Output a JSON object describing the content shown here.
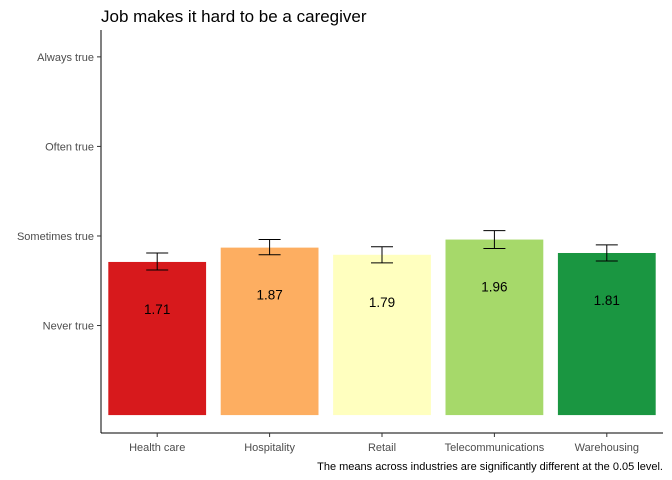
{
  "chart_data": {
    "type": "bar",
    "title": "Job makes it hard to be a caregiver",
    "caption": "The means across industries are significantly different at the 0.05 level.",
    "xlabel": "",
    "ylabel": "",
    "categories": [
      "Health care",
      "Hospitality",
      "Retail",
      "Telecommunications",
      "Warehousing"
    ],
    "values": [
      1.71,
      1.87,
      1.79,
      1.96,
      1.81
    ],
    "data_labels": [
      "1.71",
      "1.87",
      "1.79",
      "1.96",
      "1.81"
    ],
    "error_low": [
      1.62,
      1.79,
      1.7,
      1.86,
      1.72
    ],
    "error_high": [
      1.81,
      1.96,
      1.88,
      2.06,
      1.9
    ],
    "colors": [
      "#d7191c",
      "#fdae61",
      "#ffffbf",
      "#a6d96a",
      "#1a9641"
    ],
    "y_ticks": [
      {
        "value": 1,
        "label": "Never true"
      },
      {
        "value": 2,
        "label": "Sometimes true"
      },
      {
        "value": 3,
        "label": "Often true"
      },
      {
        "value": 4,
        "label": "Always true"
      }
    ],
    "ylim": [
      -0.2,
      4.3
    ],
    "bar_base": 0,
    "grid": false,
    "legend": "none"
  }
}
